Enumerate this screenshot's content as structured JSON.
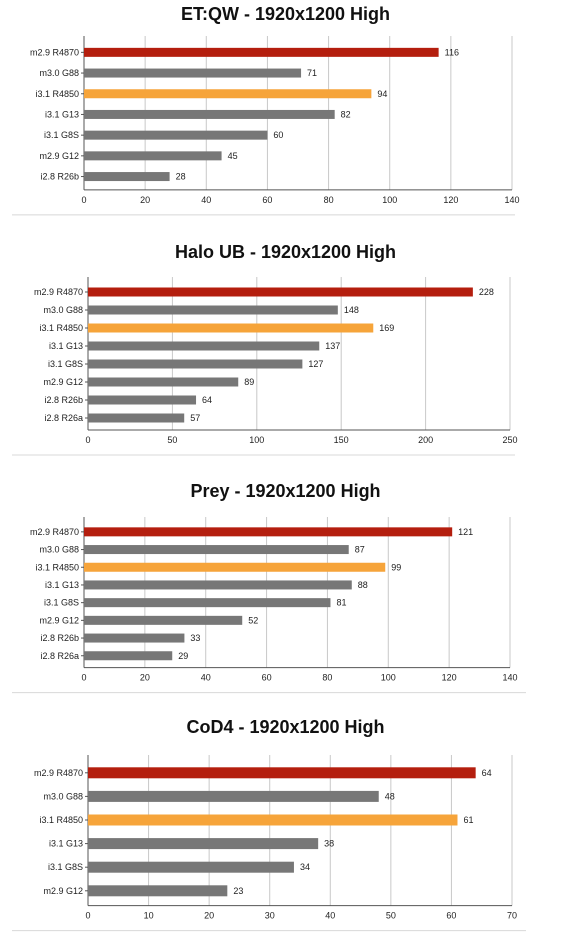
{
  "palette": {
    "highlight_dark": "#b41e0e",
    "highlight_light": "#f6a43a",
    "normal": "#777777"
  },
  "chart_data": [
    {
      "type": "bar",
      "orientation": "horizontal",
      "title": "ET:QW - 1920x1200 High",
      "categories": [
        "m2.9 R4870",
        "m3.0 G88",
        "i3.1 R4850",
        "i3.1 G13",
        "i3.1 G8S",
        "m2.9 G12",
        "i2.8 R26b"
      ],
      "values": [
        116,
        71,
        94,
        82,
        60,
        45,
        28
      ],
      "colors": [
        "#b41e0e",
        "#777777",
        "#f6a43a",
        "#777777",
        "#777777",
        "#777777",
        "#777777"
      ],
      "xlim": [
        0,
        140
      ],
      "xticks": [
        "0",
        "20",
        "40",
        "60",
        "80",
        "100",
        "120",
        "140"
      ],
      "grid": true
    },
    {
      "type": "bar",
      "orientation": "horizontal",
      "title": "Halo UB - 1920x1200 High",
      "categories": [
        "m2.9 R4870",
        "m3.0 G88",
        "i3.1 R4850",
        "i3.1 G13",
        "i3.1 G8S",
        "m2.9 G12",
        "i2.8 R26b",
        "i2.8 R26a"
      ],
      "values": [
        228,
        148,
        169,
        137,
        127,
        89,
        64,
        57
      ],
      "colors": [
        "#b41e0e",
        "#777777",
        "#f6a43a",
        "#777777",
        "#777777",
        "#777777",
        "#777777",
        "#777777"
      ],
      "xlim": [
        0,
        250
      ],
      "xticks": [
        "0",
        "50",
        "100",
        "150",
        "200",
        "250"
      ],
      "grid": true
    },
    {
      "type": "bar",
      "orientation": "horizontal",
      "title": "Prey - 1920x1200 High",
      "categories": [
        "m2.9 R4870",
        "m3.0 G88",
        "i3.1 R4850",
        "i3.1 G13",
        "i3.1 G8S",
        "m2.9 G12",
        "i2.8 R26b",
        "i2.8 R26a"
      ],
      "values": [
        121,
        87,
        99,
        88,
        81,
        52,
        33,
        29
      ],
      "colors": [
        "#b41e0e",
        "#777777",
        "#f6a43a",
        "#777777",
        "#777777",
        "#777777",
        "#777777",
        "#777777"
      ],
      "xlim": [
        0,
        140
      ],
      "xticks": [
        "0",
        "20",
        "40",
        "60",
        "80",
        "100",
        "120",
        "140"
      ],
      "grid": true
    },
    {
      "type": "bar",
      "orientation": "horizontal",
      "title": "CoD4 - 1920x1200 High",
      "categories": [
        "m2.9 R4870",
        "m3.0 G88",
        "i3.1 R4850",
        "i3.1 G13",
        "i3.1 G8S",
        "m2.9 G12"
      ],
      "values": [
        64,
        48,
        61,
        38,
        34,
        23
      ],
      "colors": [
        "#b41e0e",
        "#777777",
        "#f6a43a",
        "#777777",
        "#777777",
        "#777777"
      ],
      "xlim": [
        0,
        70
      ],
      "xticks": [
        "0",
        "10",
        "20",
        "30",
        "40",
        "50",
        "60",
        "70"
      ],
      "grid": true
    }
  ]
}
